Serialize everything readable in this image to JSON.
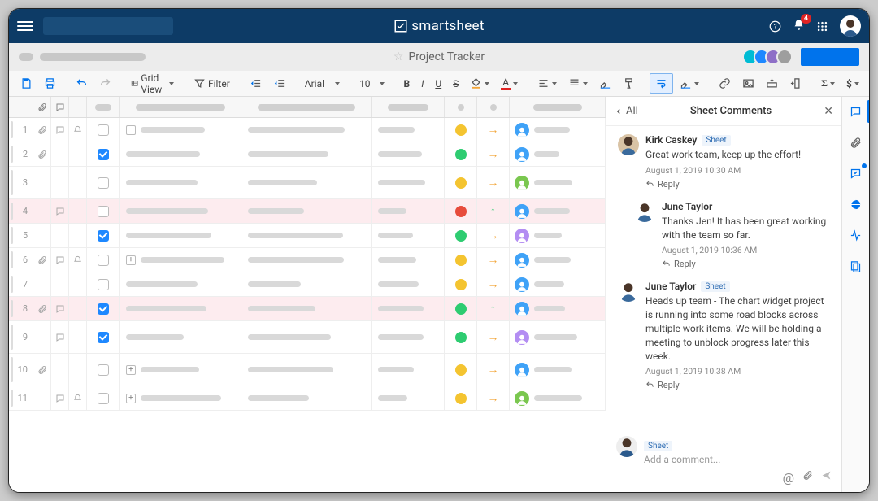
{
  "brand": "smartsheet",
  "sheet_title": "Project Tracker",
  "notification_count": "4",
  "toolbar": {
    "view_label": "Grid View",
    "filter_label": "Filter",
    "font_name": "Arial",
    "font_size": "10"
  },
  "share_avatars": [
    "#00bcd4",
    "#1e88ff",
    "#8e6fc7",
    "#9e9e9e"
  ],
  "grid": {
    "rows": [
      {
        "n": "1",
        "tall": false,
        "red": false,
        "attach": true,
        "comment": true,
        "bell": true,
        "check": "unchecked",
        "expand": "-",
        "status": "#f4c430",
        "trend": "right",
        "trend_color": "#f2a63a",
        "owner": "#3fa2f7"
      },
      {
        "n": "2",
        "tall": false,
        "red": false,
        "attach": true,
        "comment": false,
        "bell": false,
        "check": "checked",
        "expand": null,
        "status": "#2ecc71",
        "trend": "right",
        "trend_color": "#f2a63a",
        "owner": "#3fa2f7"
      },
      {
        "n": "3",
        "tall": true,
        "red": false,
        "attach": false,
        "comment": false,
        "bell": false,
        "check": "unchecked",
        "expand": null,
        "status": "#f4c430",
        "trend": "right",
        "trend_color": "#f2a63a",
        "owner": "#7ac74f"
      },
      {
        "n": "4",
        "tall": false,
        "red": true,
        "attach": false,
        "comment": true,
        "bell": false,
        "check": "unchecked",
        "expand": null,
        "status": "#e74c3c",
        "trend": "up",
        "trend_color": "#2ecc71",
        "owner": "#3fa2f7"
      },
      {
        "n": "5",
        "tall": false,
        "red": false,
        "attach": false,
        "comment": false,
        "bell": false,
        "check": "checked",
        "expand": null,
        "status": "#2ecc71",
        "trend": "right",
        "trend_color": "#f2a63a",
        "owner": "#b38df2"
      },
      {
        "n": "6",
        "tall": false,
        "red": false,
        "attach": true,
        "comment": true,
        "bell": true,
        "check": "unchecked",
        "expand": "+",
        "status": "#f4c430",
        "trend": "right",
        "trend_color": "#f2a63a",
        "owner": "#3fa2f7"
      },
      {
        "n": "7",
        "tall": false,
        "red": false,
        "attach": false,
        "comment": false,
        "bell": false,
        "check": "unchecked",
        "expand": null,
        "status": "#f4c430",
        "trend": "right",
        "trend_color": "#f2a63a",
        "owner": "#3fa2f7"
      },
      {
        "n": "8",
        "tall": false,
        "red": true,
        "attach": true,
        "comment": true,
        "bell": false,
        "check": "checked",
        "expand": null,
        "status": "#2ecc71",
        "trend": "up",
        "trend_color": "#2ecc71",
        "owner": "#3fa2f7"
      },
      {
        "n": "9",
        "tall": true,
        "red": false,
        "attach": false,
        "comment": true,
        "bell": false,
        "check": "checked",
        "expand": null,
        "status": "#2ecc71",
        "trend": "right",
        "trend_color": "#f2a63a",
        "owner": "#b38df2"
      },
      {
        "n": "10",
        "tall": true,
        "red": false,
        "attach": true,
        "comment": false,
        "bell": false,
        "check": "unchecked",
        "expand": "+",
        "status": "#f4c430",
        "trend": "right",
        "trend_color": "#f2a63a",
        "owner": "#3fa2f7"
      },
      {
        "n": "11",
        "tall": false,
        "red": false,
        "attach": false,
        "comment": true,
        "bell": true,
        "check": "unchecked",
        "expand": "+",
        "status": "#f4c430",
        "trend": "right",
        "trend_color": "#f2a63a",
        "owner": "#7ac74f"
      }
    ]
  },
  "panel": {
    "back_label": "All",
    "title": "Sheet Comments",
    "tag_label": "Sheet",
    "reply_label": "Reply",
    "compose_placeholder": "Add a comment...",
    "comments": [
      {
        "author": "Kirk Caskey",
        "text": "Great work team, keep up the effort!",
        "time": "August 1, 2019 10:30 AM",
        "reply": false,
        "avatar": "#d9c3a5"
      },
      {
        "author": "June Taylor",
        "text": "Thanks Jen! It has been great working with the team so far.",
        "time": "August 1, 2019 10:36 AM",
        "reply": true,
        "avatar": "#ffffff"
      },
      {
        "author": "June Taylor",
        "text": "Heads up team - The chart widget project is running into some road blocks across multiple work items. We will be holding a meeting to unblock progress later this week.",
        "time": "August 1, 2019 10:38 AM",
        "reply": false,
        "avatar": "#ffffff"
      }
    ]
  }
}
